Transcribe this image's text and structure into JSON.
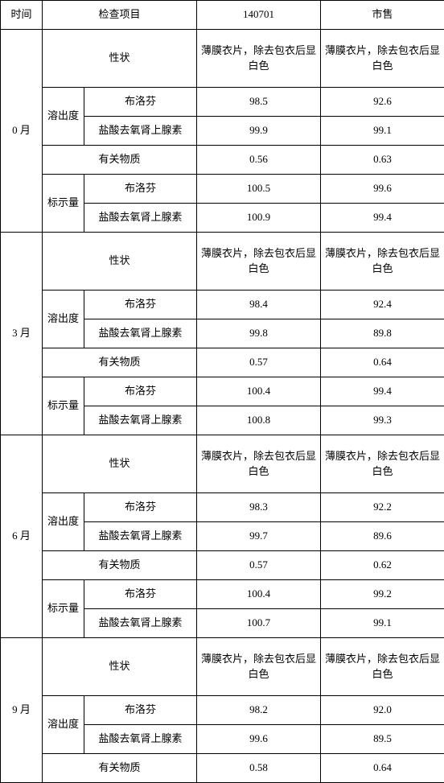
{
  "header": {
    "time": "时间",
    "project": "检查项目",
    "col1": "140701",
    "col2": "市售"
  },
  "labels": {
    "appearance": "性状",
    "dissolution": "溶出度",
    "related": "有关物质",
    "assay": "标示量",
    "ibuprofen": "布洛芬",
    "epinephrine": "盐酸去氧肾上腺素",
    "appearance_text": "薄膜衣片，除去包衣后显白色"
  },
  "periods": {
    "m0": {
      "label": "0 月",
      "dissolution": {
        "ibuprofen": {
          "v1": "98.5",
          "v2": "92.6"
        },
        "epinephrine": {
          "v1": "99.9",
          "v2": "99.1"
        }
      },
      "related": {
        "v1": "0.56",
        "v2": "0.63"
      },
      "assay": {
        "ibuprofen": {
          "v1": "100.5",
          "v2": "99.6"
        },
        "epinephrine": {
          "v1": "100.9",
          "v2": "99.4"
        }
      }
    },
    "m3": {
      "label": "3 月",
      "dissolution": {
        "ibuprofen": {
          "v1": "98.4",
          "v2": "92.4"
        },
        "epinephrine": {
          "v1": "99.8",
          "v2": "89.8"
        }
      },
      "related": {
        "v1": "0.57",
        "v2": "0.64"
      },
      "assay": {
        "ibuprofen": {
          "v1": "100.4",
          "v2": "99.4"
        },
        "epinephrine": {
          "v1": "100.8",
          "v2": "99.3"
        }
      }
    },
    "m6": {
      "label": "6 月",
      "dissolution": {
        "ibuprofen": {
          "v1": "98.3",
          "v2": "92.2"
        },
        "epinephrine": {
          "v1": "99.7",
          "v2": "89.6"
        }
      },
      "related": {
        "v1": "0.57",
        "v2": "0.62"
      },
      "assay": {
        "ibuprofen": {
          "v1": "100.4",
          "v2": "99.2"
        },
        "epinephrine": {
          "v1": "100.7",
          "v2": "99.1"
        }
      }
    },
    "m9": {
      "label": "9 月",
      "dissolution": {
        "ibuprofen": {
          "v1": "98.2",
          "v2": "92.0"
        },
        "epinephrine": {
          "v1": "99.6",
          "v2": "89.5"
        }
      },
      "related": {
        "v1": "0.58",
        "v2": "0.64"
      }
    }
  },
  "style": {
    "border_color": "#000000",
    "background_color": "#ffffff",
    "font_family": "SimSun",
    "font_size_pt": 10
  }
}
